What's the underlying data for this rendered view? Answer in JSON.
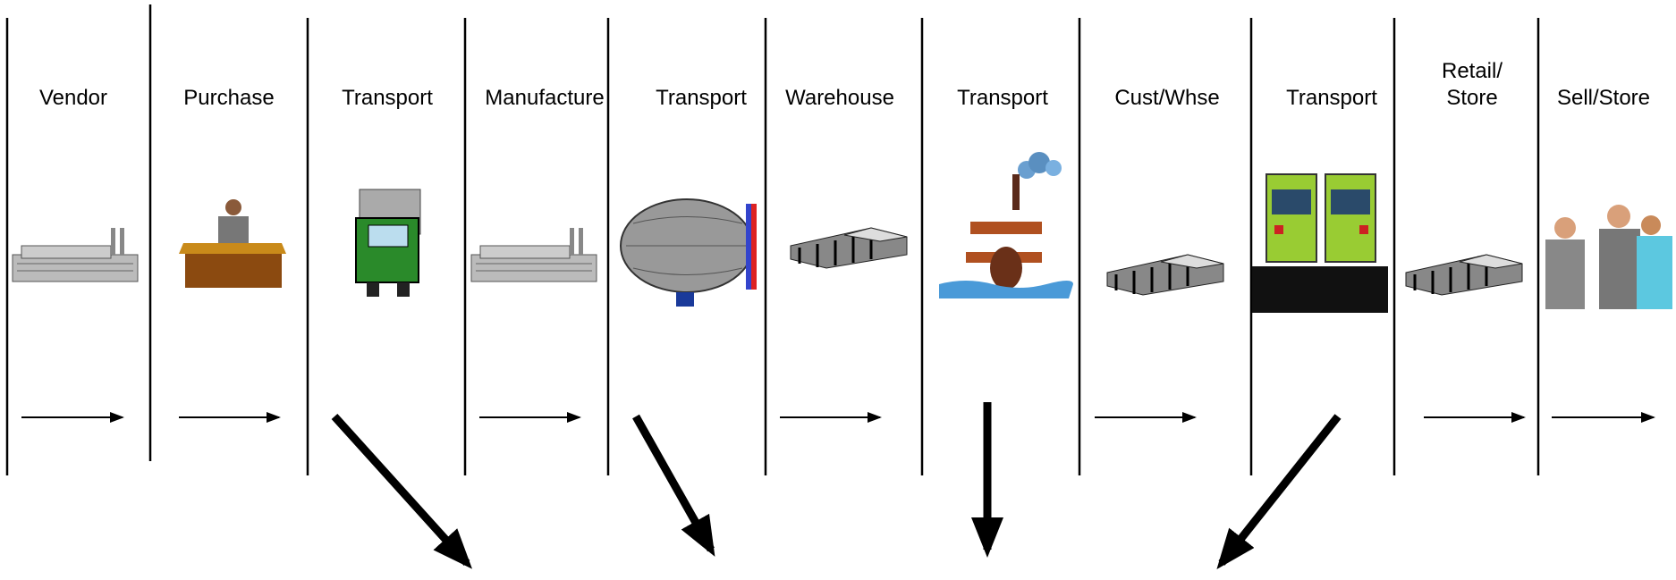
{
  "stages": [
    {
      "label": [
        "Vendor"
      ]
    },
    {
      "label": [
        "Purchase"
      ]
    },
    {
      "label": [
        "Transport"
      ]
    },
    {
      "label": [
        "Manufacture"
      ]
    },
    {
      "label": [
        "Transport"
      ]
    },
    {
      "label": [
        "Warehouse"
      ]
    },
    {
      "label": [
        "Transport"
      ]
    },
    {
      "label": [
        "Cust/Whse"
      ]
    },
    {
      "label": [
        "Transport"
      ]
    },
    {
      "label": [
        "Retail/",
        "Store"
      ]
    },
    {
      "label": [
        "Sell/Store"
      ]
    }
  ]
}
